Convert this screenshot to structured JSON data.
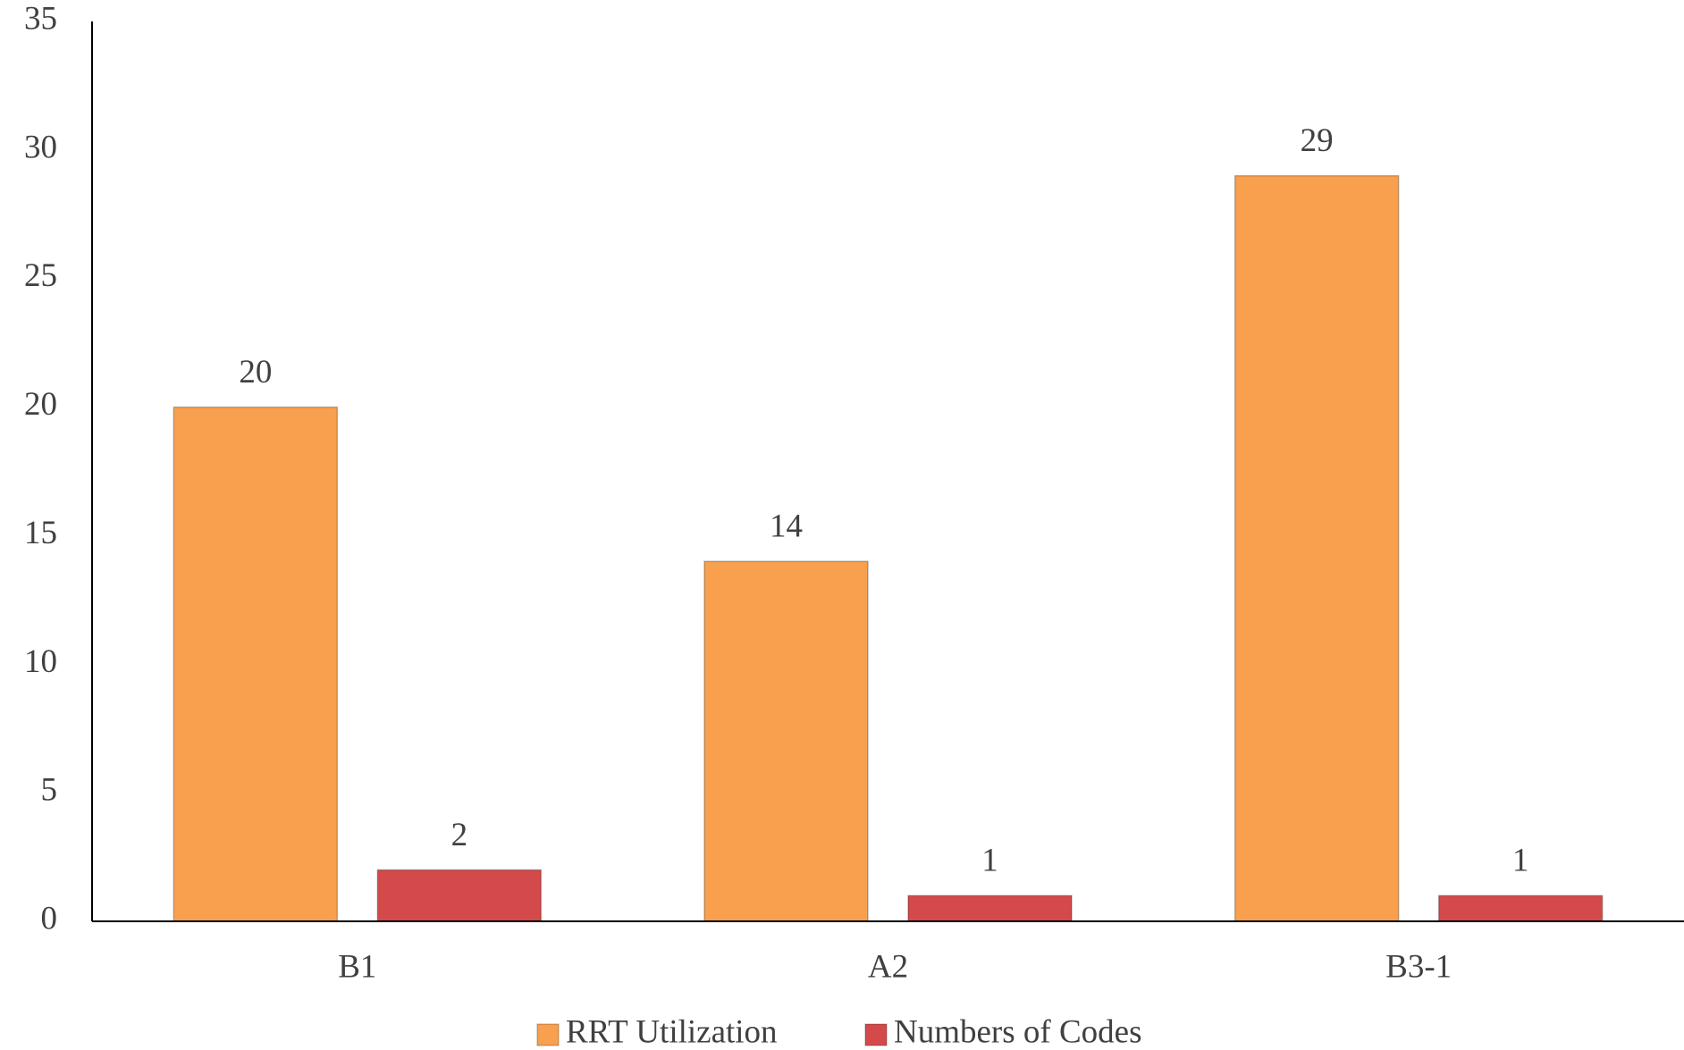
{
  "chart_data": {
    "type": "bar",
    "categories": [
      "B1",
      "A2",
      "B3-1"
    ],
    "series": [
      {
        "name": "RRT Utilization",
        "color": "#f9a04e",
        "values": [
          20,
          14,
          29
        ]
      },
      {
        "name": "Numbers of Codes",
        "color": "#d44a4a",
        "values": [
          2,
          1,
          1
        ]
      }
    ],
    "ylim": [
      0,
      35
    ],
    "yticks": [
      0,
      5,
      10,
      15,
      20,
      25,
      30,
      35
    ],
    "grid": false,
    "legend": "bottom"
  }
}
